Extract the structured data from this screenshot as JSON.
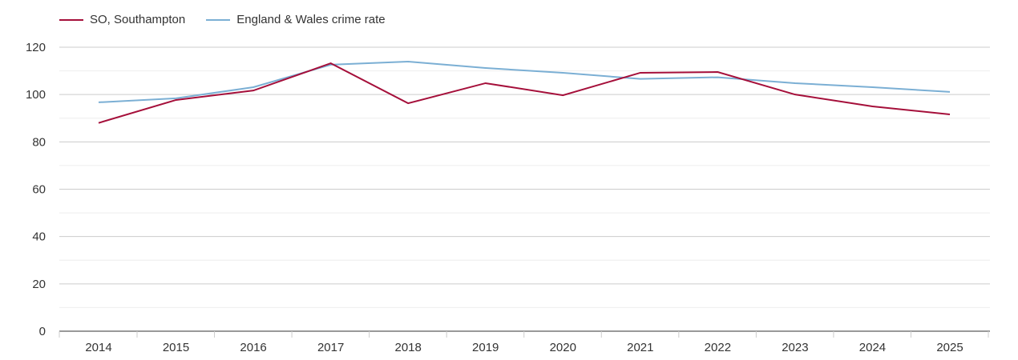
{
  "chart_data": {
    "type": "line",
    "title": "",
    "xlabel": "",
    "ylabel": "",
    "x": [
      2014,
      2015,
      2016,
      2017,
      2018,
      2019,
      2020,
      2021,
      2022,
      2023,
      2024,
      2025
    ],
    "ylim": [
      0,
      120
    ],
    "yticks": [
      0,
      20,
      40,
      60,
      80,
      100,
      120
    ],
    "grid": true,
    "legend_position": "top-left",
    "series": [
      {
        "name": "SO, Southampton",
        "color": "#a50f3a",
        "values": [
          88,
          97.7,
          101.7,
          113.2,
          96.3,
          104.8,
          99.7,
          109.2,
          109.5,
          100,
          95,
          91.6
        ]
      },
      {
        "name": "England & Wales crime rate",
        "color": "#7bafd4",
        "values": [
          96.7,
          98.4,
          103.1,
          112.6,
          113.9,
          111.2,
          109.2,
          106.6,
          107.3,
          104.8,
          103.1,
          101.1
        ]
      }
    ]
  }
}
